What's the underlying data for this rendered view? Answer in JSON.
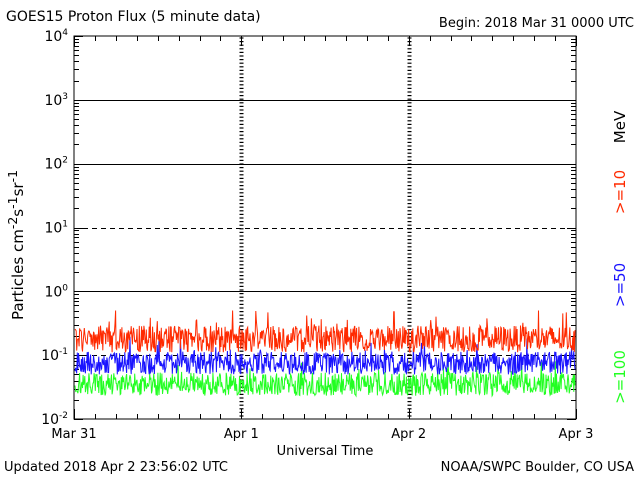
{
  "header": {
    "title": "GOES15 Proton Flux (5 minute data)",
    "begin": "Begin: 2018 Mar 31 0000 UTC"
  },
  "footer": {
    "updated": "Updated 2018 Apr  2 23:56:02 UTC",
    "credit": "NOAA/SWPC Boulder, CO USA"
  },
  "colors": {
    "ge10": "#ff2a00",
    "ge50": "#1a14ff",
    "ge100": "#22ff22",
    "axis": "#000000"
  },
  "chart_data": {
    "type": "line",
    "title": "GOES15 Proton Flux (5 minute data)",
    "xlabel": "Universal Time",
    "ylabel": "Particles cm⁻²s⁻¹sr⁻¹",
    "yscale": "log",
    "ylim": [
      0.01,
      10000
    ],
    "xlim": [
      "2018-03-31 00:00",
      "2018-04-03 00:00"
    ],
    "x_tick_labels": [
      "Mar 31",
      "Apr 1",
      "Apr 2",
      "Apr 3"
    ],
    "y_tick_labels": [
      {
        "base": "10",
        "exp": "-2",
        "value": 0.01
      },
      {
        "base": "10",
        "exp": "-1",
        "value": 0.1
      },
      {
        "base": "10",
        "exp": "0",
        "value": 1
      },
      {
        "base": "10",
        "exp": "1",
        "value": 10
      },
      {
        "base": "10",
        "exp": "2",
        "value": 100
      },
      {
        "base": "10",
        "exp": "3",
        "value": 1000
      },
      {
        "base": "10",
        "exp": "4",
        "value": 10000
      }
    ],
    "reference_lines": [
      {
        "value": 1000,
        "style": "solid"
      },
      {
        "value": 100,
        "style": "solid"
      },
      {
        "value": 10,
        "style": "dashed"
      },
      {
        "value": 1,
        "style": "solid"
      },
      {
        "value": 0.1,
        "style": "dashed"
      }
    ],
    "legend_unit": "MeV",
    "series": [
      {
        "name": ">=10",
        "color": "#ff2a00",
        "typical": 0.18,
        "min": 0.1,
        "max": 0.5
      },
      {
        "name": ">=50",
        "color": "#1a14ff",
        "typical": 0.075,
        "min": 0.05,
        "max": 0.2
      },
      {
        "name": ">=100",
        "color": "#22ff22",
        "typical": 0.035,
        "min": 0.02,
        "max": 0.08
      }
    ]
  }
}
